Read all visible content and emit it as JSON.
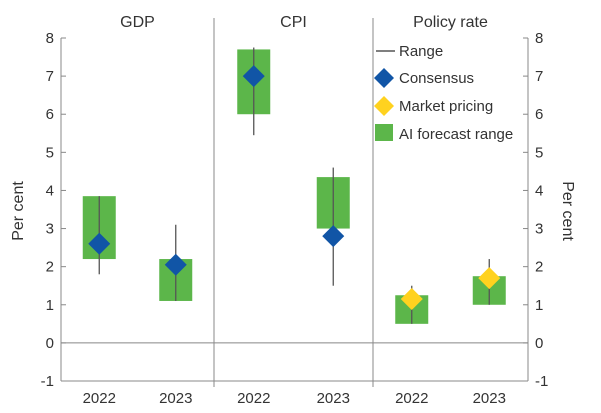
{
  "chart_data": {
    "type": "range",
    "panels": [
      {
        "title": "GDP",
        "categories": [
          "2022",
          "2023"
        ],
        "range": [
          [
            1.8,
            3.85
          ],
          [
            1.1,
            3.1
          ]
        ],
        "consensus": [
          2.6,
          2.05
        ],
        "market_pricing": [
          null,
          null
        ],
        "ai_forecast_range": [
          [
            2.2,
            3.85
          ],
          [
            1.1,
            2.2
          ]
        ]
      },
      {
        "title": "CPI",
        "categories": [
          "2022",
          "2023"
        ],
        "range": [
          [
            5.45,
            7.75
          ],
          [
            1.5,
            4.6
          ]
        ],
        "consensus": [
          7.0,
          2.8
        ],
        "market_pricing": [
          null,
          null
        ],
        "ai_forecast_range": [
          [
            6.0,
            7.7
          ],
          [
            3.0,
            4.35
          ]
        ]
      },
      {
        "title": "Policy rate",
        "categories": [
          "2022",
          "2023"
        ],
        "range": [
          [
            0.5,
            1.5
          ],
          [
            1.0,
            2.2
          ]
        ],
        "consensus": [
          null,
          null
        ],
        "market_pricing": [
          1.15,
          1.7
        ],
        "ai_forecast_range": [
          [
            0.5,
            1.25
          ],
          [
            1.0,
            1.75
          ]
        ]
      }
    ],
    "ylabel_left": "Per cent",
    "ylabel_right": "Per cent",
    "ylim": [
      -1,
      8
    ],
    "yticks": [
      "-1",
      "0",
      "1",
      "2",
      "3",
      "4",
      "5",
      "6",
      "7",
      "8"
    ],
    "legend": {
      "position": "top-right",
      "items": [
        {
          "key": "range",
          "label": "Range"
        },
        {
          "key": "consensus",
          "label": "Consensus"
        },
        {
          "key": "market_pricing",
          "label": "Market pricing"
        },
        {
          "key": "ai_forecast",
          "label": "AI forecast range"
        }
      ]
    },
    "colors": {
      "range": "#555555",
      "consensus": "#1155a6",
      "market_pricing": "#ffd21f",
      "ai_forecast": "#5cb64a",
      "axis": "#888888",
      "text": "#333333"
    }
  }
}
